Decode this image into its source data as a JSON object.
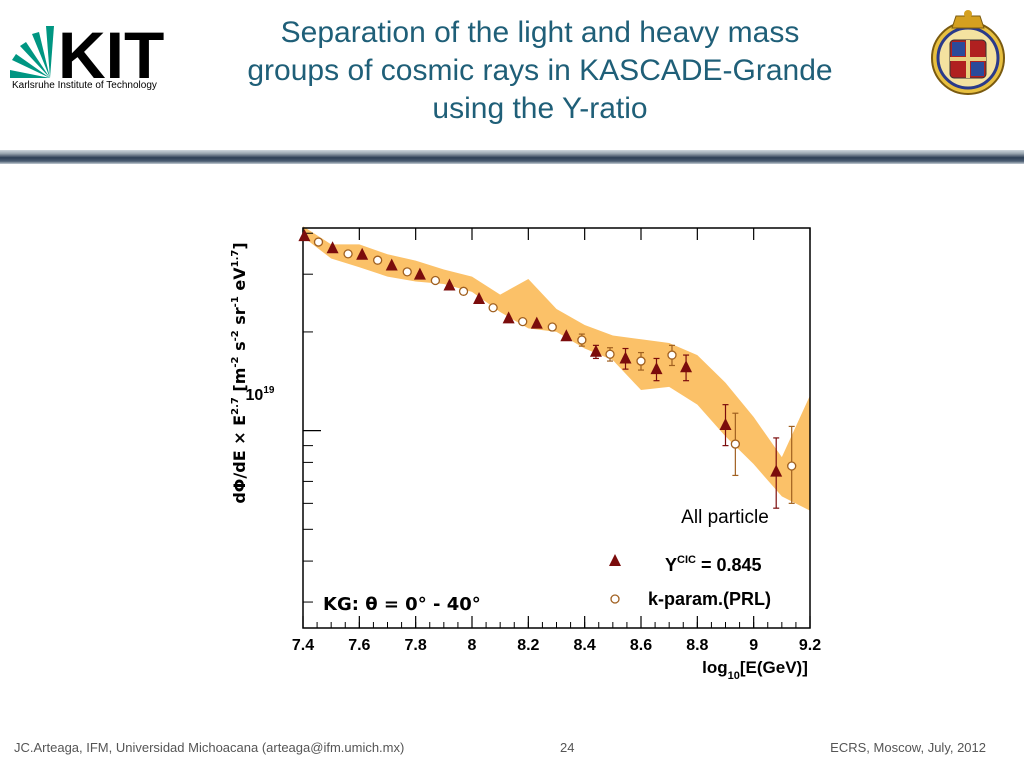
{
  "header": {
    "logo_text": "KIT",
    "logo_subtitle": "Karlsruhe Institute of Technology",
    "title_lines": [
      "Separation of the light and heavy mass",
      "groups of cosmic rays in KASCADE-Grande",
      "using the Y-ratio"
    ]
  },
  "colors": {
    "title": "#1f5f78",
    "kit_green": "#009682",
    "band": "#fbc168",
    "marker": "#7b0c0c",
    "open_marker": "#a06020"
  },
  "chart_data": {
    "type": "scatter",
    "xlabel": "log10[E(GeV)]",
    "ylabel": "dΦ/dE × E^2.7 [m^-2 s^-2 sr^-1 eV^1.7]",
    "xlim": [
      7.4,
      9.2
    ],
    "x_ticks": [
      "7.4",
      "7.6",
      "7.8",
      "8",
      "8.2",
      "8.4",
      "8.6",
      "8.8",
      "9",
      "9.2"
    ],
    "y_scale": "log",
    "ylim": [
      2.5e+18,
      4.15e+19
    ],
    "y_tick_label": "10^19",
    "annotation": "All particle",
    "kg_label": "KG: θ = 0° - 40°",
    "legend": [
      {
        "symbol": "filled-triangle",
        "label": "Y^CIC = 0.845"
      },
      {
        "symbol": "open-circle",
        "label": "k-param.(PRL)"
      }
    ],
    "band": {
      "x": [
        7.4,
        7.5,
        7.6,
        7.7,
        7.8,
        7.9,
        8.0,
        8.1,
        8.2,
        8.3,
        8.4,
        8.5,
        8.6,
        8.7,
        8.8,
        8.9,
        9.0,
        9.1,
        9.2
      ],
      "upper": [
        4.2e+19,
        3.7e+19,
        3.7e+19,
        3.45e+19,
        3.3e+19,
        3.1e+19,
        2.95e+19,
        2.6e+19,
        2.9e+19,
        2.35e+19,
        2.1e+19,
        1.95e+19,
        1.9e+19,
        1.85e+19,
        1.7e+19,
        1.4e+19,
        1.1e+19,
        8.3e+18,
        1.28e+19
      ],
      "lower": [
        3.9e+19,
        3.35e+19,
        3.15e+19,
        2.95e+19,
        2.85e+19,
        2.8e+19,
        2.65e+19,
        2.3e+19,
        2.05e+19,
        2e+19,
        1.78e+19,
        1.64e+19,
        1.33e+19,
        1.36e+19,
        1.2e+19,
        9.6e+18,
        7.9e+18,
        6.3e+18,
        5.7e+18
      ]
    },
    "series": [
      {
        "name": "Y^CIC = 0.845",
        "marker": "filled-triangle",
        "x": [
          7.405,
          7.505,
          7.61,
          7.715,
          7.815,
          7.92,
          8.025,
          8.13,
          8.23,
          8.335,
          8.44,
          8.545,
          8.655,
          8.76,
          8.9,
          9.08
        ],
        "y": [
          3.92e+19,
          3.6e+19,
          3.44e+19,
          3.19e+19,
          2.99e+19,
          2.77e+19,
          2.52e+19,
          2.2e+19,
          2.12e+19,
          1.94e+19,
          1.74e+19,
          1.66e+19,
          1.54e+19,
          1.56e+19,
          1.04e+19,
          7.5e+18
        ],
        "err_lo": [
          0,
          0,
          0,
          0,
          0,
          0,
          0,
          0,
          0,
          0,
          8e+17,
          1.2e+18,
          1.2e+18,
          1.4e+18,
          1.4e+18,
          1.7e+18
        ],
        "err_hi": [
          0,
          0,
          0,
          0,
          0,
          0,
          0,
          0,
          0,
          0,
          8e+17,
          1.2e+18,
          1.2e+18,
          1.4e+18,
          1.6e+18,
          2e+18
        ]
      },
      {
        "name": "k-param.(PRL)",
        "marker": "open-circle",
        "x": [
          7.455,
          7.56,
          7.665,
          7.77,
          7.87,
          7.97,
          8.075,
          8.18,
          8.285,
          8.39,
          8.49,
          8.6,
          8.71,
          8.935,
          9.135
        ],
        "y": [
          3.76e+19,
          3.46e+19,
          3.31e+19,
          3.05e+19,
          2.87e+19,
          2.66e+19,
          2.37e+19,
          2.15e+19,
          2.07e+19,
          1.89e+19,
          1.71e+19,
          1.63e+19,
          1.7e+19,
          9.1e+18,
          7.8e+18
        ],
        "err_lo": [
          0,
          0,
          0,
          0,
          0,
          0,
          0,
          0,
          0,
          8e+17,
          8e+17,
          1e+18,
          1.2e+18,
          1.8e+18,
          1.8e+18
        ],
        "err_hi": [
          0,
          0,
          0,
          0,
          0,
          0,
          0,
          0,
          0,
          8e+17,
          8e+17,
          1e+18,
          1.2e+18,
          2.2e+18,
          2.5e+18
        ]
      }
    ]
  },
  "footer": {
    "left": "JC.Arteaga, IFM,  Universidad Michoacana  (arteaga@ifm.umich.mx)",
    "page": "24",
    "right": "ECRS, Moscow, July, 2012"
  }
}
